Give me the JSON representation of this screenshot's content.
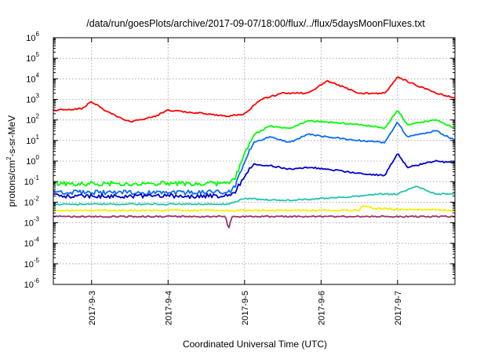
{
  "chart_data": {
    "type": "line",
    "title": "/data/run/goesPlots/archive/2017-09-07/18:00/flux/../flux/5daysMoonFluxes.txt",
    "xlabel": "Coordinated Universal Time (UTC)",
    "ylabel": "protons/cm2-s-sr-MeV",
    "ylabel_parts": {
      "pre": "protons/cm",
      "sup": "2",
      "post": "-s-sr-MeV"
    },
    "y_scale": "log",
    "ylim": [
      1e-06,
      1000000.0
    ],
    "xlim": [
      "2017-09-02T12:00",
      "2017-09-07T18:00"
    ],
    "grid": true,
    "x_ticks": [
      {
        "x": "2017-09-03T00:00",
        "label": "2017-9-3"
      },
      {
        "x": "2017-09-04T00:00",
        "label": "2017-9-4"
      },
      {
        "x": "2017-09-05T00:00",
        "label": "2017-9-5"
      },
      {
        "x": "2017-09-06T00:00",
        "label": "2017-9-6"
      },
      {
        "x": "2017-09-07T00:00",
        "label": "2017-9-7"
      }
    ],
    "y_ticks": [
      {
        "exp": "-6",
        "base": "10"
      },
      {
        "exp": "-5",
        "base": "10"
      },
      {
        "exp": "-4",
        "base": "10"
      },
      {
        "exp": "-3",
        "base": "10"
      },
      {
        "exp": "-2",
        "base": "10"
      },
      {
        "exp": "-1",
        "base": "10"
      },
      {
        "exp": "0",
        "base": "10"
      },
      {
        "exp": "1",
        "base": "10"
      },
      {
        "exp": "2",
        "base": "10"
      },
      {
        "exp": "3",
        "base": "10"
      },
      {
        "exp": "4",
        "base": "10"
      },
      {
        "exp": "5",
        "base": "10"
      },
      {
        "exp": "6",
        "base": "10"
      }
    ],
    "series": [
      {
        "color": "#ff0000",
        "x": [
          "2017-09-02T12:00",
          "2017-09-02T21:00",
          "2017-09-03T00:00",
          "2017-09-03T04:00",
          "2017-09-03T12:00",
          "2017-09-03T20:00",
          "2017-09-04T00:00",
          "2017-09-04T12:00",
          "2017-09-04T19:00",
          "2017-09-05T00:00",
          "2017-09-05T05:00",
          "2017-09-05T12:00",
          "2017-09-05T20:00",
          "2017-09-06T02:00",
          "2017-09-06T12:00",
          "2017-09-06T20:00",
          "2017-09-07T00:00",
          "2017-09-07T12:00",
          "2017-09-07T18:00"
        ],
        "values": [
          300,
          350,
          800,
          300,
          80,
          150,
          300,
          200,
          150,
          200,
          1000,
          2000,
          2000,
          8000,
          2000,
          2000,
          12000,
          2000,
          1200
        ]
      },
      {
        "color": "#00ff00",
        "x": [
          "2017-09-02T12:00",
          "2017-09-04T19:00",
          "2017-09-04T21:00",
          "2017-09-05T00:00",
          "2017-09-05T03:00",
          "2017-09-05T08:00",
          "2017-09-05T14:00",
          "2017-09-05T20:00",
          "2017-09-06T02:00",
          "2017-09-06T12:00",
          "2017-09-06T20:00",
          "2017-09-07T00:00",
          "2017-09-07T03:00",
          "2017-09-07T12:00",
          "2017-09-07T18:00"
        ],
        "values": [
          0.08,
          0.08,
          0.15,
          2,
          20,
          50,
          40,
          90,
          80,
          60,
          40,
          300,
          60,
          100,
          40
        ]
      },
      {
        "color": "#0a6df5",
        "x": [
          "2017-09-02T12:00",
          "2017-09-04T19:00",
          "2017-09-04T21:00",
          "2017-09-05T00:00",
          "2017-09-05T03:00",
          "2017-09-05T08:00",
          "2017-09-05T14:00",
          "2017-09-05T20:00",
          "2017-09-06T02:00",
          "2017-09-06T12:00",
          "2017-09-06T20:00",
          "2017-09-07T00:00",
          "2017-09-07T03:00",
          "2017-09-07T12:00",
          "2017-09-07T18:00"
        ],
        "values": [
          0.03,
          0.03,
          0.06,
          1,
          8,
          15,
          8,
          20,
          15,
          10,
          8,
          80,
          15,
          30,
          10
        ]
      },
      {
        "color": "#0000cc",
        "x": [
          "2017-09-02T12:00",
          "2017-09-04T19:00",
          "2017-09-04T21:00",
          "2017-09-05T00:00",
          "2017-09-05T03:00",
          "2017-09-05T08:00",
          "2017-09-05T14:00",
          "2017-09-05T20:00",
          "2017-09-06T02:00",
          "2017-09-06T12:00",
          "2017-09-06T20:00",
          "2017-09-07T00:00",
          "2017-09-07T03:00",
          "2017-09-07T12:00",
          "2017-09-07T18:00"
        ],
        "values": [
          0.02,
          0.02,
          0.03,
          0.2,
          0.7,
          0.6,
          0.4,
          0.5,
          0.4,
          0.25,
          0.2,
          2.5,
          0.5,
          1,
          0.8
        ]
      },
      {
        "color": "#1fc4b0",
        "x": [
          "2017-09-02T12:00",
          "2017-09-04T19:00",
          "2017-09-04T22:00",
          "2017-09-05T00:00",
          "2017-09-05T12:00",
          "2017-09-06T00:00",
          "2017-09-06T12:00",
          "2017-09-06T18:00",
          "2017-09-07T00:00",
          "2017-09-07T06:00",
          "2017-09-07T12:00",
          "2017-09-07T18:00"
        ],
        "values": [
          0.008,
          0.008,
          0.012,
          0.015,
          0.012,
          0.015,
          0.02,
          0.025,
          0.025,
          0.06,
          0.025,
          0.025
        ]
      },
      {
        "color": "#f0f000",
        "x": [
          "2017-09-02T12:00",
          "2017-09-05T00:00",
          "2017-09-06T12:00",
          "2017-09-06T13:00",
          "2017-09-06T16:00",
          "2017-09-07T00:00",
          "2017-09-07T18:00"
        ],
        "values": [
          0.004,
          0.004,
          0.004,
          0.007,
          0.005,
          0.0045,
          0.004
        ]
      },
      {
        "color": "#993366",
        "x": [
          "2017-09-02T12:00",
          "2017-09-04T18:00",
          "2017-09-04T19:00",
          "2017-09-04T20:00",
          "2017-09-07T18:00"
        ],
        "values": [
          0.002,
          0.002,
          0.0005,
          0.002,
          0.002
        ]
      }
    ]
  }
}
